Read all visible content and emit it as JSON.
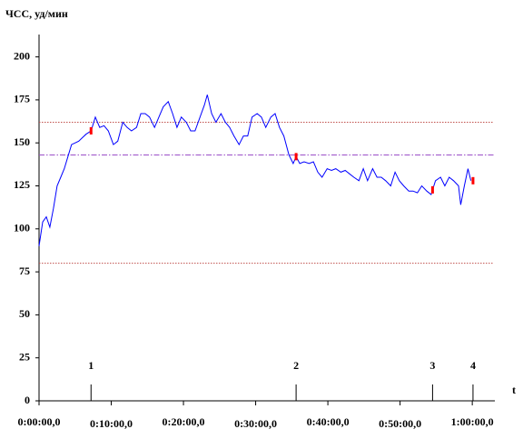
{
  "chart_data": {
    "type": "line",
    "y_label": "ЧСС, уд/мин",
    "x_label": "t",
    "xlim": [
      0,
      63
    ],
    "ylim": [
      0,
      213
    ],
    "yticks": [
      0,
      25,
      50,
      75,
      100,
      125,
      150,
      175,
      200
    ],
    "xticks": [
      {
        "value": 0,
        "label": "0:00:00,0"
      },
      {
        "value": 10,
        "label": "0:10:00,0"
      },
      {
        "value": 20,
        "label": "0:20:00,0"
      },
      {
        "value": 30,
        "label": "0:30:00,0"
      },
      {
        "value": 40,
        "label": "0:40:00,0"
      },
      {
        "value": 50,
        "label": "0:50:00,0"
      },
      {
        "value": 60,
        "label": "1:00:00,0"
      }
    ],
    "hlines": [
      {
        "value": 162,
        "color": "#c0504d",
        "style": "dotted"
      },
      {
        "value": 80,
        "color": "#c0504d",
        "style": "dotted"
      },
      {
        "value": 143,
        "color": "#9b4fc8",
        "style": "dashdot"
      }
    ],
    "markers": [
      {
        "label": "1",
        "x": 7.2
      },
      {
        "label": "2",
        "x": 35.6
      },
      {
        "label": "3",
        "x": 54.5
      },
      {
        "label": "4",
        "x": 60.1
      }
    ],
    "marker_color": "#ff0000",
    "series": [
      {
        "name": "ЧСС",
        "color": "#0000ff",
        "x": [
          0,
          0.5,
          1,
          1.5,
          2,
          2.5,
          3,
          3.5,
          4,
          4.5,
          5,
          5.5,
          6,
          6.5,
          7.2,
          7.8,
          8.4,
          9,
          9.6,
          10.3,
          10.9,
          11.6,
          12.2,
          12.8,
          13.5,
          14.1,
          14.7,
          15.3,
          16,
          16.6,
          17.2,
          17.9,
          18.5,
          19.1,
          19.7,
          20.4,
          21,
          21.6,
          22.3,
          22.9,
          23.3,
          23.9,
          24.5,
          25.2,
          25.8,
          26.4,
          27,
          27.7,
          28.3,
          28.9,
          29.5,
          30.2,
          30.8,
          31.4,
          32.1,
          32.7,
          33.3,
          33.9,
          34.6,
          35.2,
          35.6,
          36.1,
          36.7,
          37.4,
          38,
          38.6,
          39.2,
          39.9,
          40.5,
          41.1,
          41.8,
          42.4,
          43,
          43.6,
          44.3,
          44.9,
          45.5,
          46.2,
          46.8,
          47.4,
          48,
          48.7,
          49.3,
          49.9,
          50.5,
          51.2,
          51.8,
          52.4,
          53,
          53.7,
          54.3,
          54.9,
          55.6,
          56.2,
          56.8,
          57.4,
          58.1,
          58.4,
          58.9,
          59.4,
          59.8
        ],
        "values": [
          90,
          104,
          107,
          101,
          112,
          125,
          130,
          135,
          142,
          149,
          150,
          151,
          153,
          155,
          157,
          165,
          159,
          160,
          157,
          149,
          151,
          162,
          159,
          157,
          159,
          167,
          167,
          165,
          159,
          165,
          171,
          174,
          167,
          159,
          165,
          162,
          157,
          157,
          165,
          172,
          178,
          167,
          162,
          167,
          162,
          159,
          154,
          149,
          154,
          154,
          165,
          167,
          165,
          159,
          165,
          167,
          159,
          154,
          143,
          138,
          142,
          138,
          139,
          138,
          139,
          133,
          130,
          135,
          134,
          135,
          133,
          134,
          132,
          130,
          128,
          135,
          128,
          135,
          130,
          130,
          128,
          125,
          133,
          128,
          125,
          122,
          122,
          121,
          125,
          122,
          120,
          128,
          130,
          125,
          130,
          128,
          125,
          114,
          125,
          135,
          128
        ]
      }
    ]
  }
}
